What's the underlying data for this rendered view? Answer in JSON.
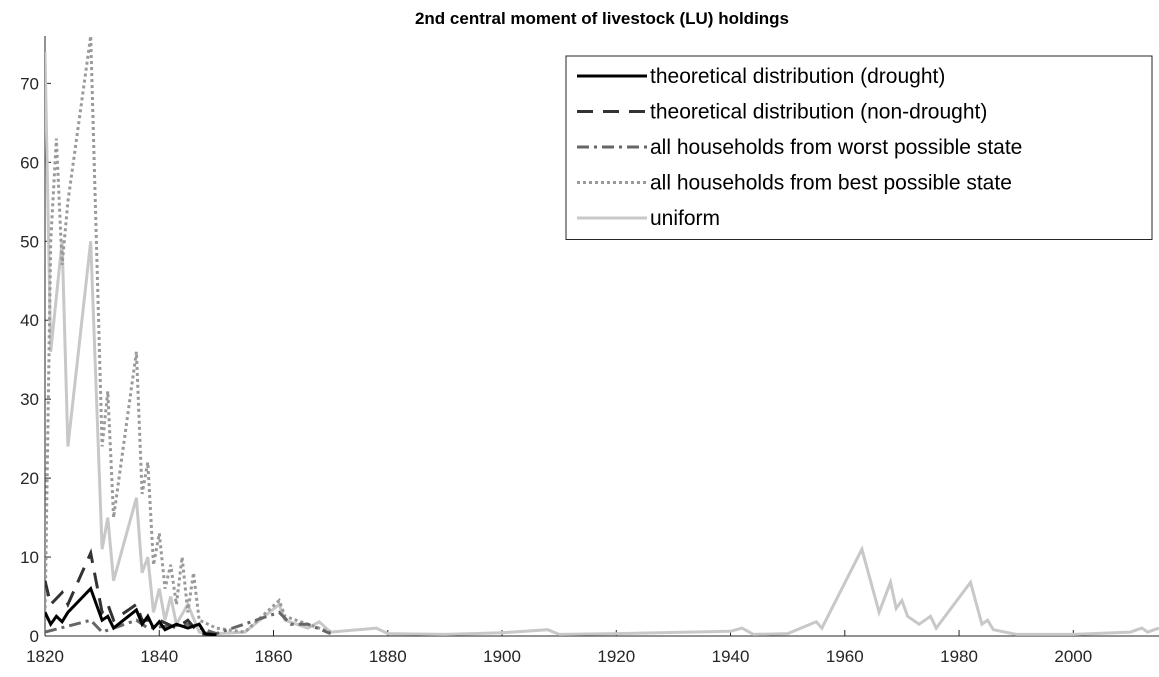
{
  "chart_data": {
    "type": "line",
    "title": "2nd central moment of livestock (LU) holdings",
    "xlim": [
      1820,
      2015
    ],
    "ylim": [
      0,
      76
    ],
    "xticks": [
      1820,
      1840,
      1860,
      1880,
      1900,
      1920,
      1940,
      1960,
      1980,
      2000
    ],
    "yticks": [
      0,
      10,
      20,
      30,
      40,
      50,
      60,
      70
    ],
    "legend": "top-right",
    "series": [
      {
        "name": "theoretical distribution (drought)",
        "color": "#000000",
        "dash": "solid",
        "x": [
          1820,
          1821,
          1822,
          1823,
          1824,
          1828,
          1830,
          1831,
          1832,
          1836,
          1837,
          1838,
          1839,
          1840,
          1841,
          1843,
          1845,
          1847,
          1848,
          1850
        ],
        "values": [
          3,
          1.5,
          2.5,
          1.8,
          3,
          6,
          2,
          2.5,
          1,
          3.3,
          1.5,
          2.5,
          1,
          1.8,
          0.8,
          1.5,
          1,
          1.5,
          0.3,
          0.1
        ]
      },
      {
        "name": "theoretical distribution (non-drought)",
        "color": "#333333",
        "dash": "dash",
        "x": [
          1820,
          1821,
          1823,
          1824,
          1828,
          1830,
          1831,
          1832,
          1836,
          1837,
          1840,
          1843,
          1845,
          1847,
          1850
        ],
        "values": [
          7,
          4,
          5.5,
          4,
          10.5,
          3,
          4,
          2,
          4,
          2,
          2,
          1,
          2,
          0.3,
          0.2
        ]
      },
      {
        "name": "all households from worst possible state",
        "color": "#666666",
        "dash": "dashdot",
        "x": [
          1820,
          1828,
          1830,
          1836,
          1838,
          1845,
          1850,
          1861,
          1863,
          1866,
          1870
        ],
        "values": [
          0.5,
          2,
          0.5,
          2,
          1,
          1.5,
          0.3,
          3,
          1.5,
          1.5,
          0.3
        ]
      },
      {
        "name": "all households from best possible state",
        "color": "#9a9a9a",
        "dash": "dot",
        "x": [
          1820,
          1821,
          1822,
          1823,
          1824,
          1828,
          1829,
          1830,
          1831,
          1832,
          1836,
          1837,
          1838,
          1839,
          1840,
          1841,
          1842,
          1843,
          1844,
          1845,
          1846,
          1847,
          1850,
          1855,
          1861,
          1862,
          1866,
          1870
        ],
        "values": [
          2,
          50,
          63,
          47,
          55,
          76,
          50,
          24,
          31,
          15,
          36,
          18,
          22,
          9,
          13,
          6,
          9,
          4,
          10,
          3,
          8,
          2,
          1,
          0.5,
          4.5,
          2.5,
          1.5,
          0.5
        ]
      },
      {
        "name": "uniform",
        "color": "#c8c8c8",
        "dash": "solid",
        "x": [
          1820,
          1821,
          1823,
          1824,
          1828,
          1830,
          1831,
          1832,
          1836,
          1837,
          1838,
          1839,
          1840,
          1841,
          1842,
          1843,
          1845,
          1847,
          1850,
          1855,
          1861,
          1862,
          1864,
          1866,
          1868,
          1870,
          1878,
          1880,
          1890,
          1900,
          1908,
          1910,
          1920,
          1940,
          1942,
          1944,
          1950,
          1955,
          1956,
          1963,
          1966,
          1968,
          1969,
          1970,
          1971,
          1973,
          1975,
          1976,
          1982,
          1984,
          1985,
          1986,
          1990,
          2000,
          2010,
          2012,
          2013,
          2015
        ],
        "values": [
          74,
          36,
          50,
          24,
          50,
          11,
          15,
          7,
          17.5,
          8,
          10,
          3,
          6,
          2,
          5,
          1.5,
          4,
          0.5,
          0.3,
          0.5,
          4,
          2,
          1.5,
          1,
          1.8,
          0.5,
          1,
          0.3,
          0.2,
          0.4,
          0.8,
          0.2,
          0.3,
          0.6,
          1,
          0.2,
          0.3,
          1.8,
          1,
          11,
          3,
          6.8,
          3.5,
          4.5,
          2.5,
          1.5,
          2.5,
          1,
          6.8,
          1.5,
          2,
          0.8,
          0.2,
          0.2,
          0.5,
          1,
          0.5,
          1
        ]
      }
    ]
  }
}
